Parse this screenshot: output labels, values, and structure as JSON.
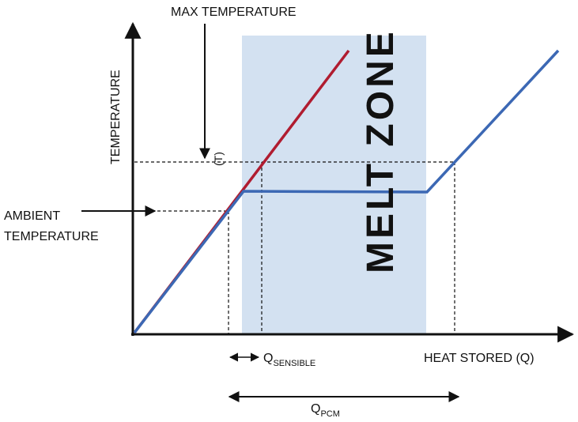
{
  "labels": {
    "max_temperature": "MAX TEMPERATURE",
    "y_axis": "TEMPERATURE",
    "t_marker": "(T)",
    "ambient_line1": "AMBIENT",
    "ambient_line2": "TEMPERATURE",
    "melt_zone": "MELT ZONE",
    "q_main": "Q",
    "q_sensible_sub": "SENSIBLE",
    "x_axis": "HEAT STORED (Q)",
    "q_pcm_sub": "PCM"
  },
  "colors": {
    "melt_zone_fill": "#d3e1f1",
    "sensible_line": "#b01c30",
    "pcm_line": "#3c68b4",
    "axis": "#111111"
  },
  "icons": {
    "arrow": "arrowhead"
  }
}
